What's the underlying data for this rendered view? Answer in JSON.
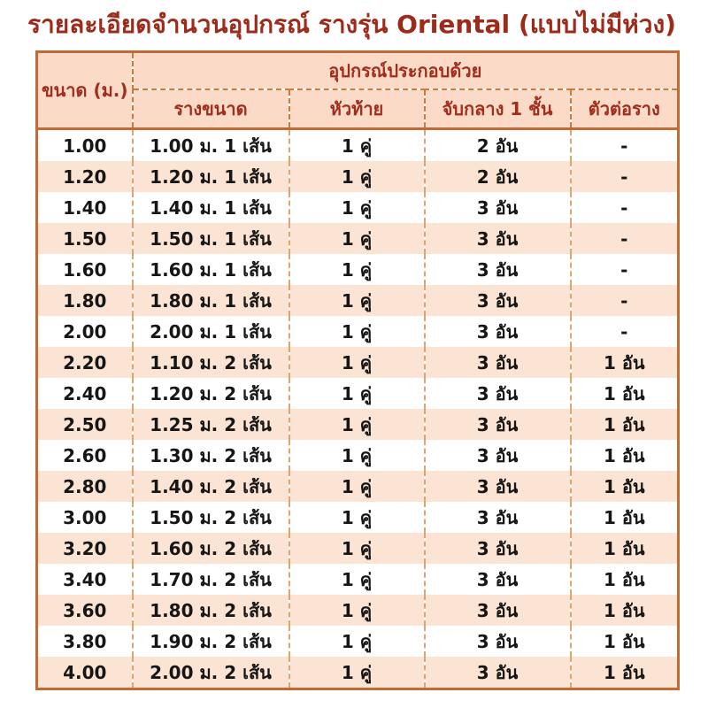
{
  "title": "รายละเอียดจำนวนอุปกรณ์ รางรุ่น Oriental (แบบไม่มีห่วง)",
  "colors": {
    "title_text": "#9e2b1a",
    "header_text": "#a32d1b",
    "header_background": "#fbdbc8",
    "stripe_background": "#fce4d5",
    "outer_border": "#bf6b33",
    "dashed_divider": "#c87d3e",
    "body_text": "#161616"
  },
  "table": {
    "corner_header": "ขนาด (ม.)",
    "group_header": "อุปกรณ์ประกอบด้วย",
    "sub_headers": [
      "รางขนาด",
      "หัวท้าย",
      "จับกลาง 1 ชั้น",
      "ตัวต่อราง"
    ],
    "rows": [
      [
        "1.00",
        "1.00 ม. 1 เส้น",
        "1 คู่",
        "2 อัน",
        "-"
      ],
      [
        "1.20",
        "1.20 ม. 1 เส้น",
        "1 คู่",
        "2 อัน",
        "-"
      ],
      [
        "1.40",
        "1.40 ม. 1 เส้น",
        "1 คู่",
        "3 อัน",
        "-"
      ],
      [
        "1.50",
        "1.50 ม. 1 เส้น",
        "1 คู่",
        "3 อัน",
        "-"
      ],
      [
        "1.60",
        "1.60 ม. 1 เส้น",
        "1 คู่",
        "3 อัน",
        "-"
      ],
      [
        "1.80",
        "1.80 ม. 1 เส้น",
        "1 คู่",
        "3 อัน",
        "-"
      ],
      [
        "2.00",
        "2.00 ม. 1 เส้น",
        "1 คู่",
        "3 อัน",
        "-"
      ],
      [
        "2.20",
        "1.10 ม. 2 เส้น",
        "1 คู่",
        "3 อัน",
        "1 อัน"
      ],
      [
        "2.40",
        "1.20 ม. 2 เส้น",
        "1 คู่",
        "3 อัน",
        "1 อัน"
      ],
      [
        "2.50",
        "1.25 ม. 2 เส้น",
        "1 คู่",
        "3 อัน",
        "1 อัน"
      ],
      [
        "2.60",
        "1.30 ม. 2 เส้น",
        "1 คู่",
        "3 อัน",
        "1 อัน"
      ],
      [
        "2.80",
        "1.40 ม. 2 เส้น",
        "1 คู่",
        "3 อัน",
        "1 อัน"
      ],
      [
        "3.00",
        "1.50 ม. 2 เส้น",
        "1 คู่",
        "3 อัน",
        "1 อัน"
      ],
      [
        "3.20",
        "1.60 ม. 2 เส้น",
        "1 คู่",
        "3 อัน",
        "1 อัน"
      ],
      [
        "3.40",
        "1.70 ม. 2 เส้น",
        "1 คู่",
        "3 อัน",
        "1 อัน"
      ],
      [
        "3.60",
        "1.80 ม. 2 เส้น",
        "1 คู่",
        "3 อัน",
        "1 อัน"
      ],
      [
        "3.80",
        "1.90 ม. 2 เส้น",
        "1 คู่",
        "3 อัน",
        "1 อัน"
      ],
      [
        "4.00",
        "2.00 ม. 2 เส้น",
        "1 คู่",
        "3 อัน",
        "1 อัน"
      ]
    ]
  }
}
